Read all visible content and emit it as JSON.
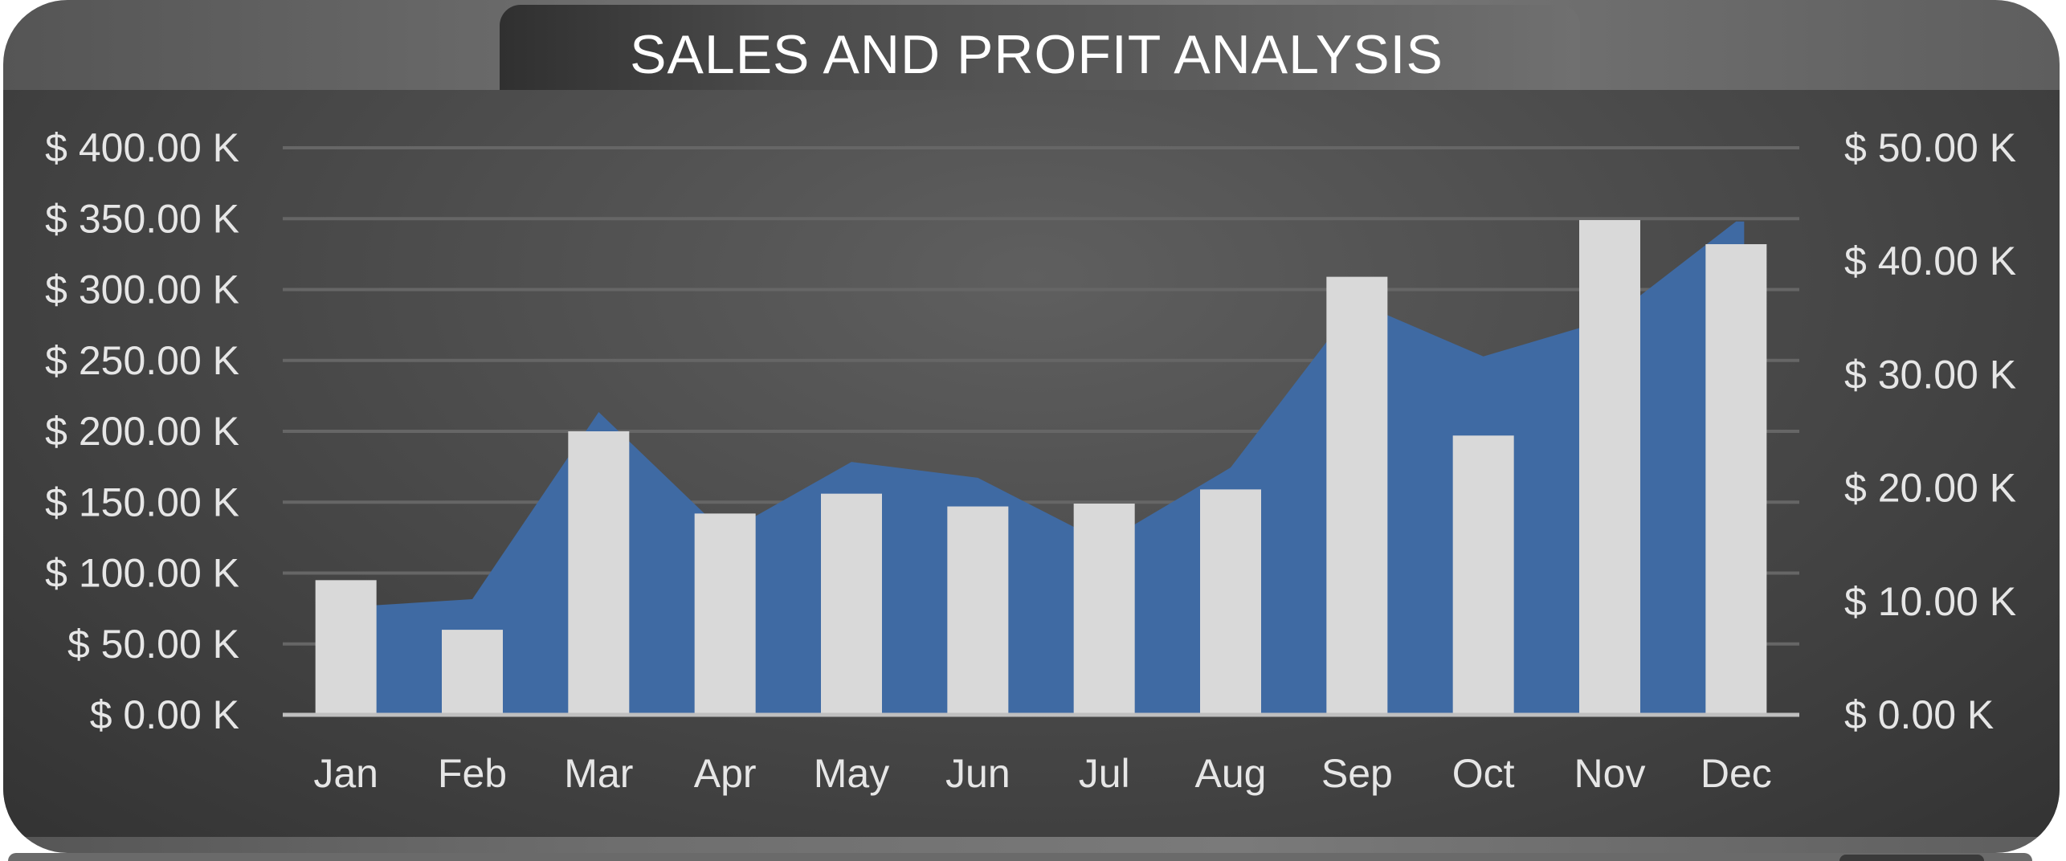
{
  "colors": {
    "area": "#3f6aa3",
    "bars": "#d9d9d9",
    "gridlines": "#666666",
    "baseline": "#bfbfbf",
    "text": "#e6e6e6",
    "title": "#ffffff"
  },
  "chart_data": {
    "type": "bar",
    "title": "SALES AND PROFIT ANALYSIS",
    "categories": [
      "Jan",
      "Feb",
      "Mar",
      "Apr",
      "May",
      "Jun",
      "Jul",
      "Aug",
      "Sep",
      "Oct",
      "Nov",
      "Dec"
    ],
    "series": [
      {
        "kind": "bar",
        "axis": "left",
        "values": [
          95,
          60,
          200,
          142,
          156,
          147,
          149,
          159,
          309,
          197,
          349,
          332
        ]
      },
      {
        "kind": "area",
        "axis": "right",
        "values": [
          9.5,
          10.2,
          26.7,
          16.0,
          22.3,
          20.9,
          15.2,
          21.8,
          36.4,
          31.6,
          34.9,
          43.5
        ]
      }
    ],
    "y_left": {
      "ylim": [
        0,
        400
      ],
      "ticks": [
        0,
        50,
        100,
        150,
        200,
        250,
        300,
        350,
        400
      ],
      "tick_labels": [
        "$ 0.00 K",
        "$ 50.00 K",
        "$ 100.00 K",
        "$ 150.00 K",
        "$ 200.00 K",
        "$ 250.00 K",
        "$ 300.00 K",
        "$ 350.00 K",
        "$ 400.00 K"
      ]
    },
    "y_right": {
      "ylim": [
        0,
        50
      ],
      "ticks": [
        0,
        10,
        20,
        30,
        40,
        50
      ],
      "tick_labels": [
        "$ 0.00 K",
        "$ 10.00 K",
        "$ 20.00 K",
        "$ 30.00 K",
        "$ 40.00 K",
        "$ 50.00 K"
      ]
    },
    "grid": true,
    "legend": "none"
  }
}
